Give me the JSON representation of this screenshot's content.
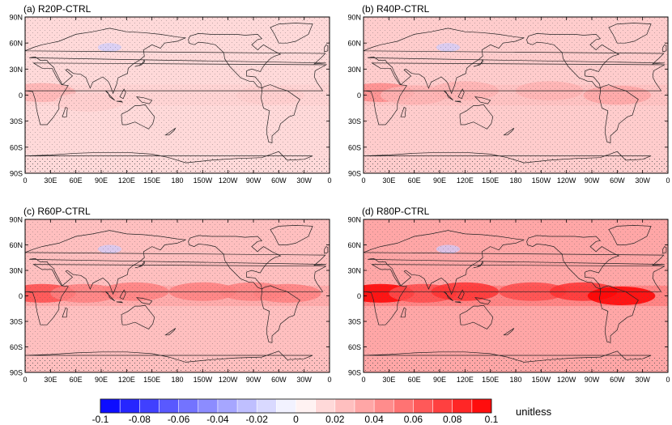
{
  "chart_data": [
    {
      "type": "heatmap",
      "title": "(a) R20P-CTRL",
      "x_ticks": [
        "0",
        "30E",
        "60E",
        "90E",
        "120E",
        "150E",
        "180",
        "150W",
        "120W",
        "90W",
        "60W",
        "30W",
        "0"
      ],
      "y_ticks": [
        "90N",
        "60N",
        "30N",
        "0",
        "30S",
        "60S",
        "90S"
      ],
      "xlim": [
        0,
        360
      ],
      "ylim": [
        -90,
        90
      ],
      "background_value": 0.015,
      "features": [
        {
          "lon": 20,
          "lat": 3,
          "value": 0.03
        },
        {
          "lon": 75,
          "lat": -8,
          "value": 0.02
        },
        {
          "lon": 290,
          "lat": 0,
          "value": 0.02
        }
      ],
      "stippled": true
    },
    {
      "type": "heatmap",
      "title": "(b) R40P-CTRL",
      "x_ticks": [
        "0",
        "30E",
        "60E",
        "90E",
        "120E",
        "150E",
        "180",
        "150W",
        "120W",
        "90W",
        "60W",
        "30W",
        "0"
      ],
      "y_ticks": [
        "90N",
        "60N",
        "30N",
        "0",
        "30S",
        "60S",
        "90S"
      ],
      "xlim": [
        0,
        360
      ],
      "ylim": [
        -90,
        90
      ],
      "background_value": 0.02,
      "features": [
        {
          "lon": 20,
          "lat": 3,
          "value": 0.045
        },
        {
          "lon": 60,
          "lat": 0,
          "value": 0.03
        },
        {
          "lon": 120,
          "lat": 5,
          "value": 0.03
        },
        {
          "lon": 220,
          "lat": 5,
          "value": 0.03
        },
        {
          "lon": 300,
          "lat": 0,
          "value": 0.035
        }
      ],
      "stippled": true
    },
    {
      "type": "heatmap",
      "title": "(c) R60P-CTRL",
      "x_ticks": [
        "0",
        "30E",
        "60E",
        "90E",
        "120E",
        "150E",
        "180",
        "150W",
        "120W",
        "90W",
        "60W",
        "30W",
        "0"
      ],
      "y_ticks": [
        "90N",
        "60N",
        "30N",
        "0",
        "30S",
        "60S",
        "90S"
      ],
      "xlim": [
        0,
        360
      ],
      "ylim": [
        -90,
        90
      ],
      "background_value": 0.025,
      "features": [
        {
          "lon": 20,
          "lat": 3,
          "value": 0.07
        },
        {
          "lon": 70,
          "lat": 3,
          "value": 0.05
        },
        {
          "lon": 130,
          "lat": 5,
          "value": 0.05
        },
        {
          "lon": 210,
          "lat": 5,
          "value": 0.05
        },
        {
          "lon": 270,
          "lat": 5,
          "value": 0.05
        },
        {
          "lon": 310,
          "lat": 3,
          "value": 0.05
        }
      ],
      "stippled": true
    },
    {
      "type": "heatmap",
      "title": "(d) R80P-CTRL",
      "x_ticks": [
        "0",
        "30E",
        "60E",
        "90E",
        "120E",
        "150E",
        "180",
        "150W",
        "120W",
        "90W",
        "60W",
        "30W",
        "0"
      ],
      "y_ticks": [
        "90N",
        "60N",
        "30N",
        "0",
        "30S",
        "60S",
        "90S"
      ],
      "xlim": [
        0,
        360
      ],
      "ylim": [
        -90,
        90
      ],
      "background_value": 0.035,
      "features": [
        {
          "lon": 20,
          "lat": 3,
          "value": 0.1
        },
        {
          "lon": 70,
          "lat": 3,
          "value": 0.07
        },
        {
          "lon": 120,
          "lat": 5,
          "value": 0.08
        },
        {
          "lon": 200,
          "lat": 5,
          "value": 0.07
        },
        {
          "lon": 260,
          "lat": 5,
          "value": 0.08
        },
        {
          "lon": 305,
          "lat": 0,
          "value": 0.1
        }
      ],
      "stippled": true
    }
  ],
  "colorbar": {
    "min": -0.1,
    "max": 0.1,
    "step": 0.01,
    "labels": [
      "-0.1",
      "-0.08",
      "-0.06",
      "-0.04",
      "-0.02",
      "0",
      "0.02",
      "0.04",
      "0.06",
      "0.08",
      "0.1"
    ],
    "units": "unitless",
    "colors": {
      "negative": "#0000ff",
      "neutral": "#ffffff",
      "positive": "#ff0000",
      "coastline": "#222222",
      "stipple": "#555555"
    }
  }
}
